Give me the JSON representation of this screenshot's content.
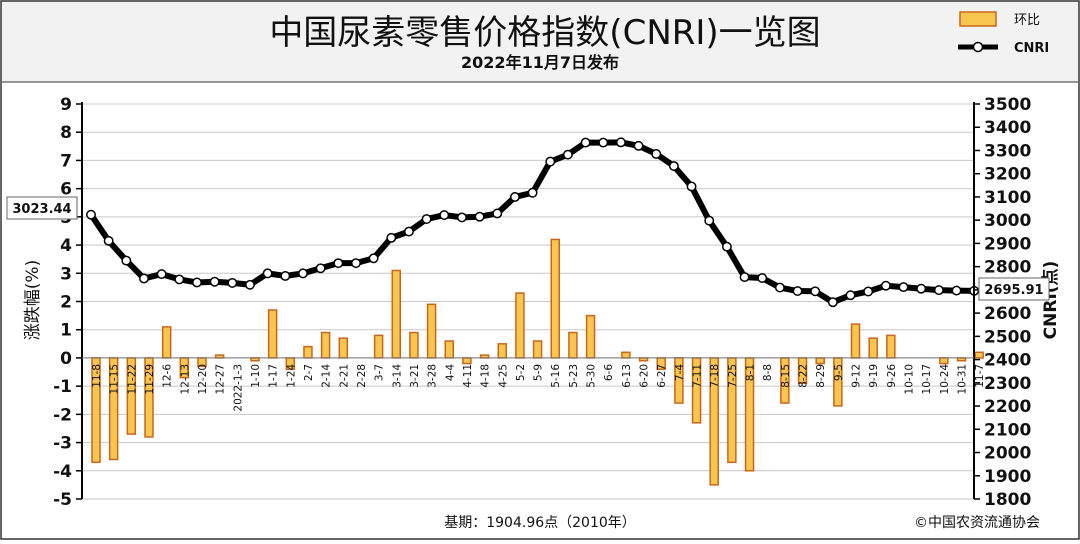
{
  "header": {
    "title": "中国尿素零售价格指数(CNRI)一览图",
    "subtitle": "2022年11月7日发布"
  },
  "legend": {
    "bar_label": "环比",
    "line_label": "CNRI"
  },
  "footer": {
    "base": "基期：1904.96点（2010年）",
    "copyright": "©中国农资流通协会"
  },
  "callouts": {
    "first": "3023.44",
    "last": "2695.91"
  },
  "colors": {
    "bar_fill": "#f6c64e",
    "bar_edge": "#c9661e",
    "line": "#000000",
    "grid": "#c8c8c8",
    "header_bg": "#f2f2f2"
  },
  "chart_data": {
    "type": "bar+line",
    "categories": [
      "11-8",
      "11-15",
      "11-22",
      "11-29",
      "12-6",
      "12-13",
      "12-20",
      "12-27",
      "2022-1-3",
      "1-10",
      "1-17",
      "1-24",
      "2-7",
      "2-14",
      "2-21",
      "2-28",
      "3-7",
      "3-14",
      "3-21",
      "3-28",
      "4-4",
      "4-11",
      "4-18",
      "4-25",
      "5-2",
      "5-9",
      "5-16",
      "5-23",
      "5-30",
      "6-6",
      "6-13",
      "6-20",
      "6-27",
      "7-4",
      "7-11",
      "7-18",
      "7-25",
      "8-1",
      "8-8",
      "8-15",
      "8-22",
      "8-29",
      "9-5",
      "9-12",
      "9-19",
      "9-26",
      "10-10",
      "10-17",
      "10-24",
      "10-31",
      "11-7"
    ],
    "x_tick_labels": [
      "11-8",
      "11-15",
      "11-22",
      "11-29",
      "12-6",
      "12-13",
      "12-20",
      "12-27",
      "2022-1-3",
      "1-10",
      "1-17",
      "1-24",
      "2-7",
      "2-14",
      "2-21",
      "2-28",
      "3-7",
      "3-14",
      "3-21",
      "3-28",
      "4-4",
      "4-11",
      "4-18",
      "4-25",
      "5-2",
      "5-9",
      "5-16",
      "5-23",
      "5-30",
      "6-6",
      "6-13",
      "6-20",
      "6-27",
      "7-4",
      "7-11",
      "7-18",
      "7-25",
      "8-1",
      "8-8",
      "8-15",
      "8-22",
      "8-29",
      "9-5",
      "9-12",
      "9-19",
      "9-26",
      "10-10",
      "10-17",
      "10-24",
      "10-31",
      "11-7"
    ],
    "series": [
      {
        "name": "环比",
        "type": "bar",
        "axis": "left",
        "values": [
          -3.7,
          -3.6,
          -2.7,
          -2.8,
          1.1,
          -0.7,
          -0.3,
          0.1,
          0,
          -0.1,
          1.7,
          -0.4,
          0.4,
          0.9,
          0.7,
          0,
          0.8,
          3.1,
          0.9,
          1.9,
          0.6,
          -0.2,
          0.1,
          0.5,
          2.3,
          0.6,
          4.2,
          0.9,
          1.5,
          0,
          0.2,
          -0.1,
          -0.4,
          -1.6,
          -2.3,
          -4.5,
          -3.7,
          -4.0,
          0,
          -1.6,
          -0.9,
          -0.2,
          -1.7,
          1.2,
          0.7,
          0.8,
          0,
          0,
          -0.2,
          -0.1,
          0.2
        ]
      },
      {
        "name": "CNRI",
        "type": "line",
        "axis": "right",
        "values": [
          3023.44,
          2911,
          2826,
          2749,
          2768,
          2745,
          2732,
          2735,
          2730,
          2722,
          2771,
          2760,
          2771,
          2793,
          2815,
          2815,
          2836,
          2924,
          2951,
          3005,
          3022,
          3012,
          3015,
          3029,
          3100,
          3118,
          3252,
          3282,
          3334,
          3334,
          3335,
          3320,
          3285,
          3233,
          3145,
          2998,
          2886,
          2755,
          2751,
          2710,
          2695,
          2694,
          2647,
          2677,
          2693,
          2718,
          2712,
          2705,
          2699,
          2697,
          2695.91
        ]
      }
    ],
    "y_left": {
      "label": "涨跌幅(%)",
      "ticks": [
        "9",
        "8",
        "7",
        "6",
        "5",
        "4",
        "3",
        "2",
        "1",
        "0",
        "-1",
        "-2",
        "-3",
        "-4",
        "-5"
      ],
      "lim": [
        -5,
        9
      ]
    },
    "y_right": {
      "label": "CNRI(点)",
      "ticks": [
        "3500",
        "3400",
        "3300",
        "3200",
        "3100",
        "3000",
        "2900",
        "2800",
        "2700",
        "2600",
        "2500",
        "2400",
        "2300",
        "2200",
        "2100",
        "2000",
        "1900",
        "1800"
      ],
      "lim": [
        1800,
        3500
      ]
    },
    "grid": true,
    "legend_position": "top-right"
  }
}
